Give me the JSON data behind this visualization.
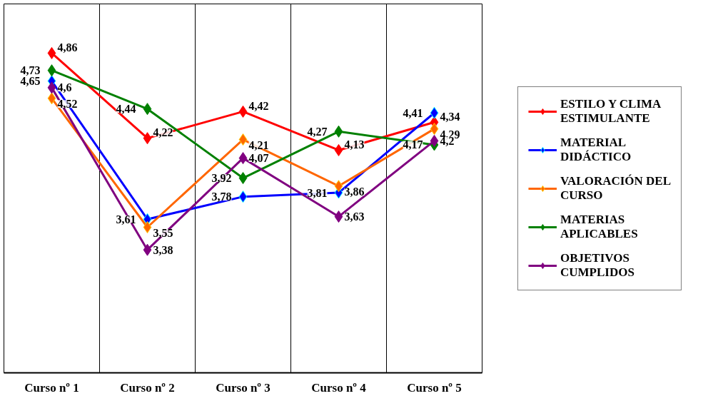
{
  "chart_data": {
    "type": "line",
    "categories": [
      "Curso nº 1",
      "Curso nº 2",
      "Curso nº 3",
      "Curso nº 4",
      "Curso nº 5"
    ],
    "series": [
      {
        "name": "ESTILO Y CLIMA ESTIMULANTE",
        "color": "#ff0000",
        "values": [
          4.86,
          4.22,
          4.42,
          4.13,
          4.34
        ],
        "value_labels": [
          "4,86",
          "4,22",
          "4,42",
          "4,13",
          "4,34"
        ]
      },
      {
        "name": "MATERIAL DIDÁCTICO",
        "color": "#0000ff",
        "values": [
          4.65,
          3.61,
          3.78,
          3.81,
          4.41
        ],
        "value_labels": [
          "4,65",
          "3,61",
          "3,78",
          "3,81",
          "4,41"
        ]
      },
      {
        "name": "VALORACIÓN DEL CURSO",
        "color": "#ff6600",
        "values": [
          4.52,
          3.55,
          4.21,
          3.86,
          4.29
        ],
        "value_labels": [
          "4,52",
          "3,55",
          "4,21",
          "3,86",
          "4,29"
        ]
      },
      {
        "name": "MATERIAS APLICABLES",
        "color": "#008000",
        "values": [
          4.73,
          4.44,
          3.92,
          4.27,
          4.17
        ],
        "value_labels": [
          "4,73",
          "4,44",
          "3,92",
          "4,27",
          "4,17"
        ]
      },
      {
        "name": "OBJETIVOS CUMPLIDOS",
        "color": "#800080",
        "values": [
          4.6,
          3.38,
          4.07,
          3.63,
          4.2
        ],
        "value_labels": [
          "4,6",
          "3,38",
          "4,07",
          "3,63",
          "4,2"
        ]
      }
    ],
    "marker": "diamond",
    "line_style": "solid",
    "legend": "right",
    "grid": "x"
  }
}
